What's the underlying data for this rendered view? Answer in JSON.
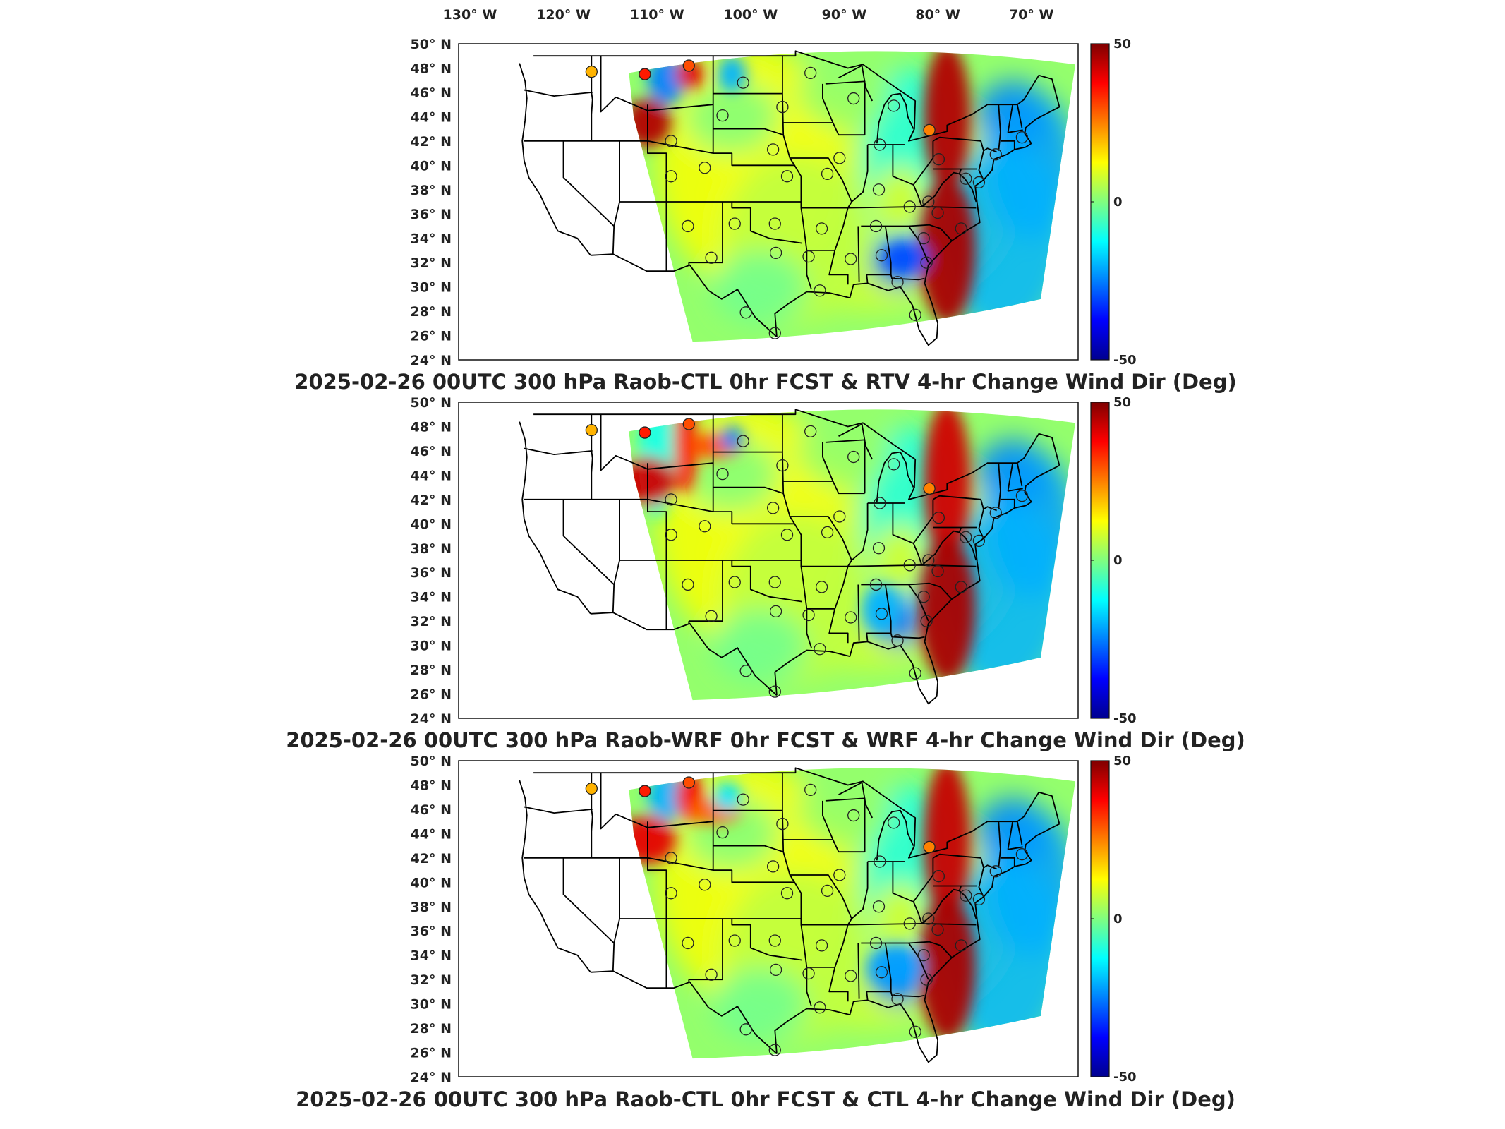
{
  "figure": {
    "lon_axis": {
      "labels": [
        "130° W",
        "120° W",
        "110° W",
        "100° W",
        "90° W",
        "80° W",
        "70° W"
      ],
      "values": [
        -130,
        -120,
        -110,
        -100,
        -90,
        -80,
        -70
      ]
    },
    "lat_axis": {
      "labels": [
        "50° N",
        "48° N",
        "46° N",
        "44° N",
        "42° N",
        "40° N",
        "38° N",
        "36° N",
        "34° N",
        "32° N",
        "30° N",
        "28° N",
        "26° N",
        "24° N"
      ],
      "values": [
        50,
        48,
        46,
        44,
        42,
        40,
        38,
        36,
        34,
        32,
        30,
        28,
        26,
        24
      ]
    },
    "colorbar": {
      "labels": [
        "50",
        "0",
        "-50"
      ],
      "range": [
        -50,
        50
      ],
      "colormap": "jet",
      "colors": [
        "#00008f",
        "#0000ff",
        "#0080ff",
        "#00ffff",
        "#80ff80",
        "#ffff00",
        "#ff8000",
        "#ff0000",
        "#800000"
      ]
    },
    "marker": {
      "shape": "circle",
      "edge_color": "#222222"
    },
    "land_line_color": "#000000"
  },
  "panels": [
    {
      "title": "2025-02-26 00UTC 300 hPa Raob-CTL 0hr FCST & RTV 4-hr Change Wind Dir (Deg)"
    },
    {
      "title": "2025-02-26 00UTC 300 hPa Raob-WRF 0hr FCST & WRF 4-hr Change Wind Dir (Deg)"
    },
    {
      "title": "2025-02-26 00UTC 300 hPa Raob-CTL 0hr FCST & CTL 4-hr Change Wind Dir (Deg)"
    }
  ],
  "stations": [
    {
      "lon": -117.0,
      "lat": 47.7,
      "v": 20
    },
    {
      "lon": -111.3,
      "lat": 47.5,
      "v": 35
    },
    {
      "lon": -106.6,
      "lat": 48.2,
      "v": 30
    },
    {
      "lon": -100.8,
      "lat": 46.8,
      "v": 0
    },
    {
      "lon": -93.6,
      "lat": 47.6,
      "v": 0
    },
    {
      "lon": -89.0,
      "lat": 45.5,
      "v": 0
    },
    {
      "lon": -84.7,
      "lat": 44.9,
      "v": 0
    },
    {
      "lon": -108.5,
      "lat": 42.0,
      "v": 0
    },
    {
      "lon": -103.0,
      "lat": 44.1,
      "v": 0
    },
    {
      "lon": -96.6,
      "lat": 44.8,
      "v": 0
    },
    {
      "lon": -90.5,
      "lat": 40.6,
      "v": 0
    },
    {
      "lon": -86.2,
      "lat": 41.7,
      "v": 0
    },
    {
      "lon": -80.9,
      "lat": 42.9,
      "v": 25
    },
    {
      "lon": -79.9,
      "lat": 40.5,
      "v": 0
    },
    {
      "lon": -108.5,
      "lat": 39.1,
      "v": 0
    },
    {
      "lon": -104.9,
      "lat": 39.8,
      "v": 0
    },
    {
      "lon": -97.6,
      "lat": 41.3,
      "v": 0
    },
    {
      "lon": -96.1,
      "lat": 39.1,
      "v": 0
    },
    {
      "lon": -91.8,
      "lat": 39.3,
      "v": 0
    },
    {
      "lon": -86.3,
      "lat": 38.0,
      "v": 0
    },
    {
      "lon": -83.0,
      "lat": 36.6,
      "v": 0
    },
    {
      "lon": -77.0,
      "lat": 38.9,
      "v": 0
    },
    {
      "lon": -75.6,
      "lat": 38.6,
      "v": 0
    },
    {
      "lon": -81.0,
      "lat": 37.0,
      "v": 0
    },
    {
      "lon": -106.7,
      "lat": 35.0,
      "v": 0
    },
    {
      "lon": -101.7,
      "lat": 35.2,
      "v": 0
    },
    {
      "lon": -97.4,
      "lat": 35.2,
      "v": 0
    },
    {
      "lon": -92.4,
      "lat": 34.8,
      "v": 0
    },
    {
      "lon": -86.6,
      "lat": 35.0,
      "v": 0
    },
    {
      "lon": -80.0,
      "lat": 36.1,
      "v": 0
    },
    {
      "lon": -77.5,
      "lat": 34.8,
      "v": 0
    },
    {
      "lon": -104.2,
      "lat": 32.4,
      "v": 0
    },
    {
      "lon": -97.3,
      "lat": 32.8,
      "v": 0
    },
    {
      "lon": -93.8,
      "lat": 32.5,
      "v": 0
    },
    {
      "lon": -89.3,
      "lat": 32.3,
      "v": 0
    },
    {
      "lon": -86.0,
      "lat": 32.6,
      "v": 0
    },
    {
      "lon": -81.2,
      "lat": 32.0,
      "v": 0
    },
    {
      "lon": -100.5,
      "lat": 27.9,
      "v": 0
    },
    {
      "lon": -97.4,
      "lat": 26.2,
      "v": 0
    },
    {
      "lon": -92.6,
      "lat": 29.7,
      "v": 0
    },
    {
      "lon": -84.3,
      "lat": 30.4,
      "v": 0
    },
    {
      "lon": -82.4,
      "lat": 27.7,
      "v": 0
    },
    {
      "lon": -81.5,
      "lat": 34.0,
      "v": 0
    },
    {
      "lon": -71.0,
      "lat": 42.3,
      "v": 0
    },
    {
      "lon": -73.8,
      "lat": 40.9,
      "v": 0
    }
  ]
}
